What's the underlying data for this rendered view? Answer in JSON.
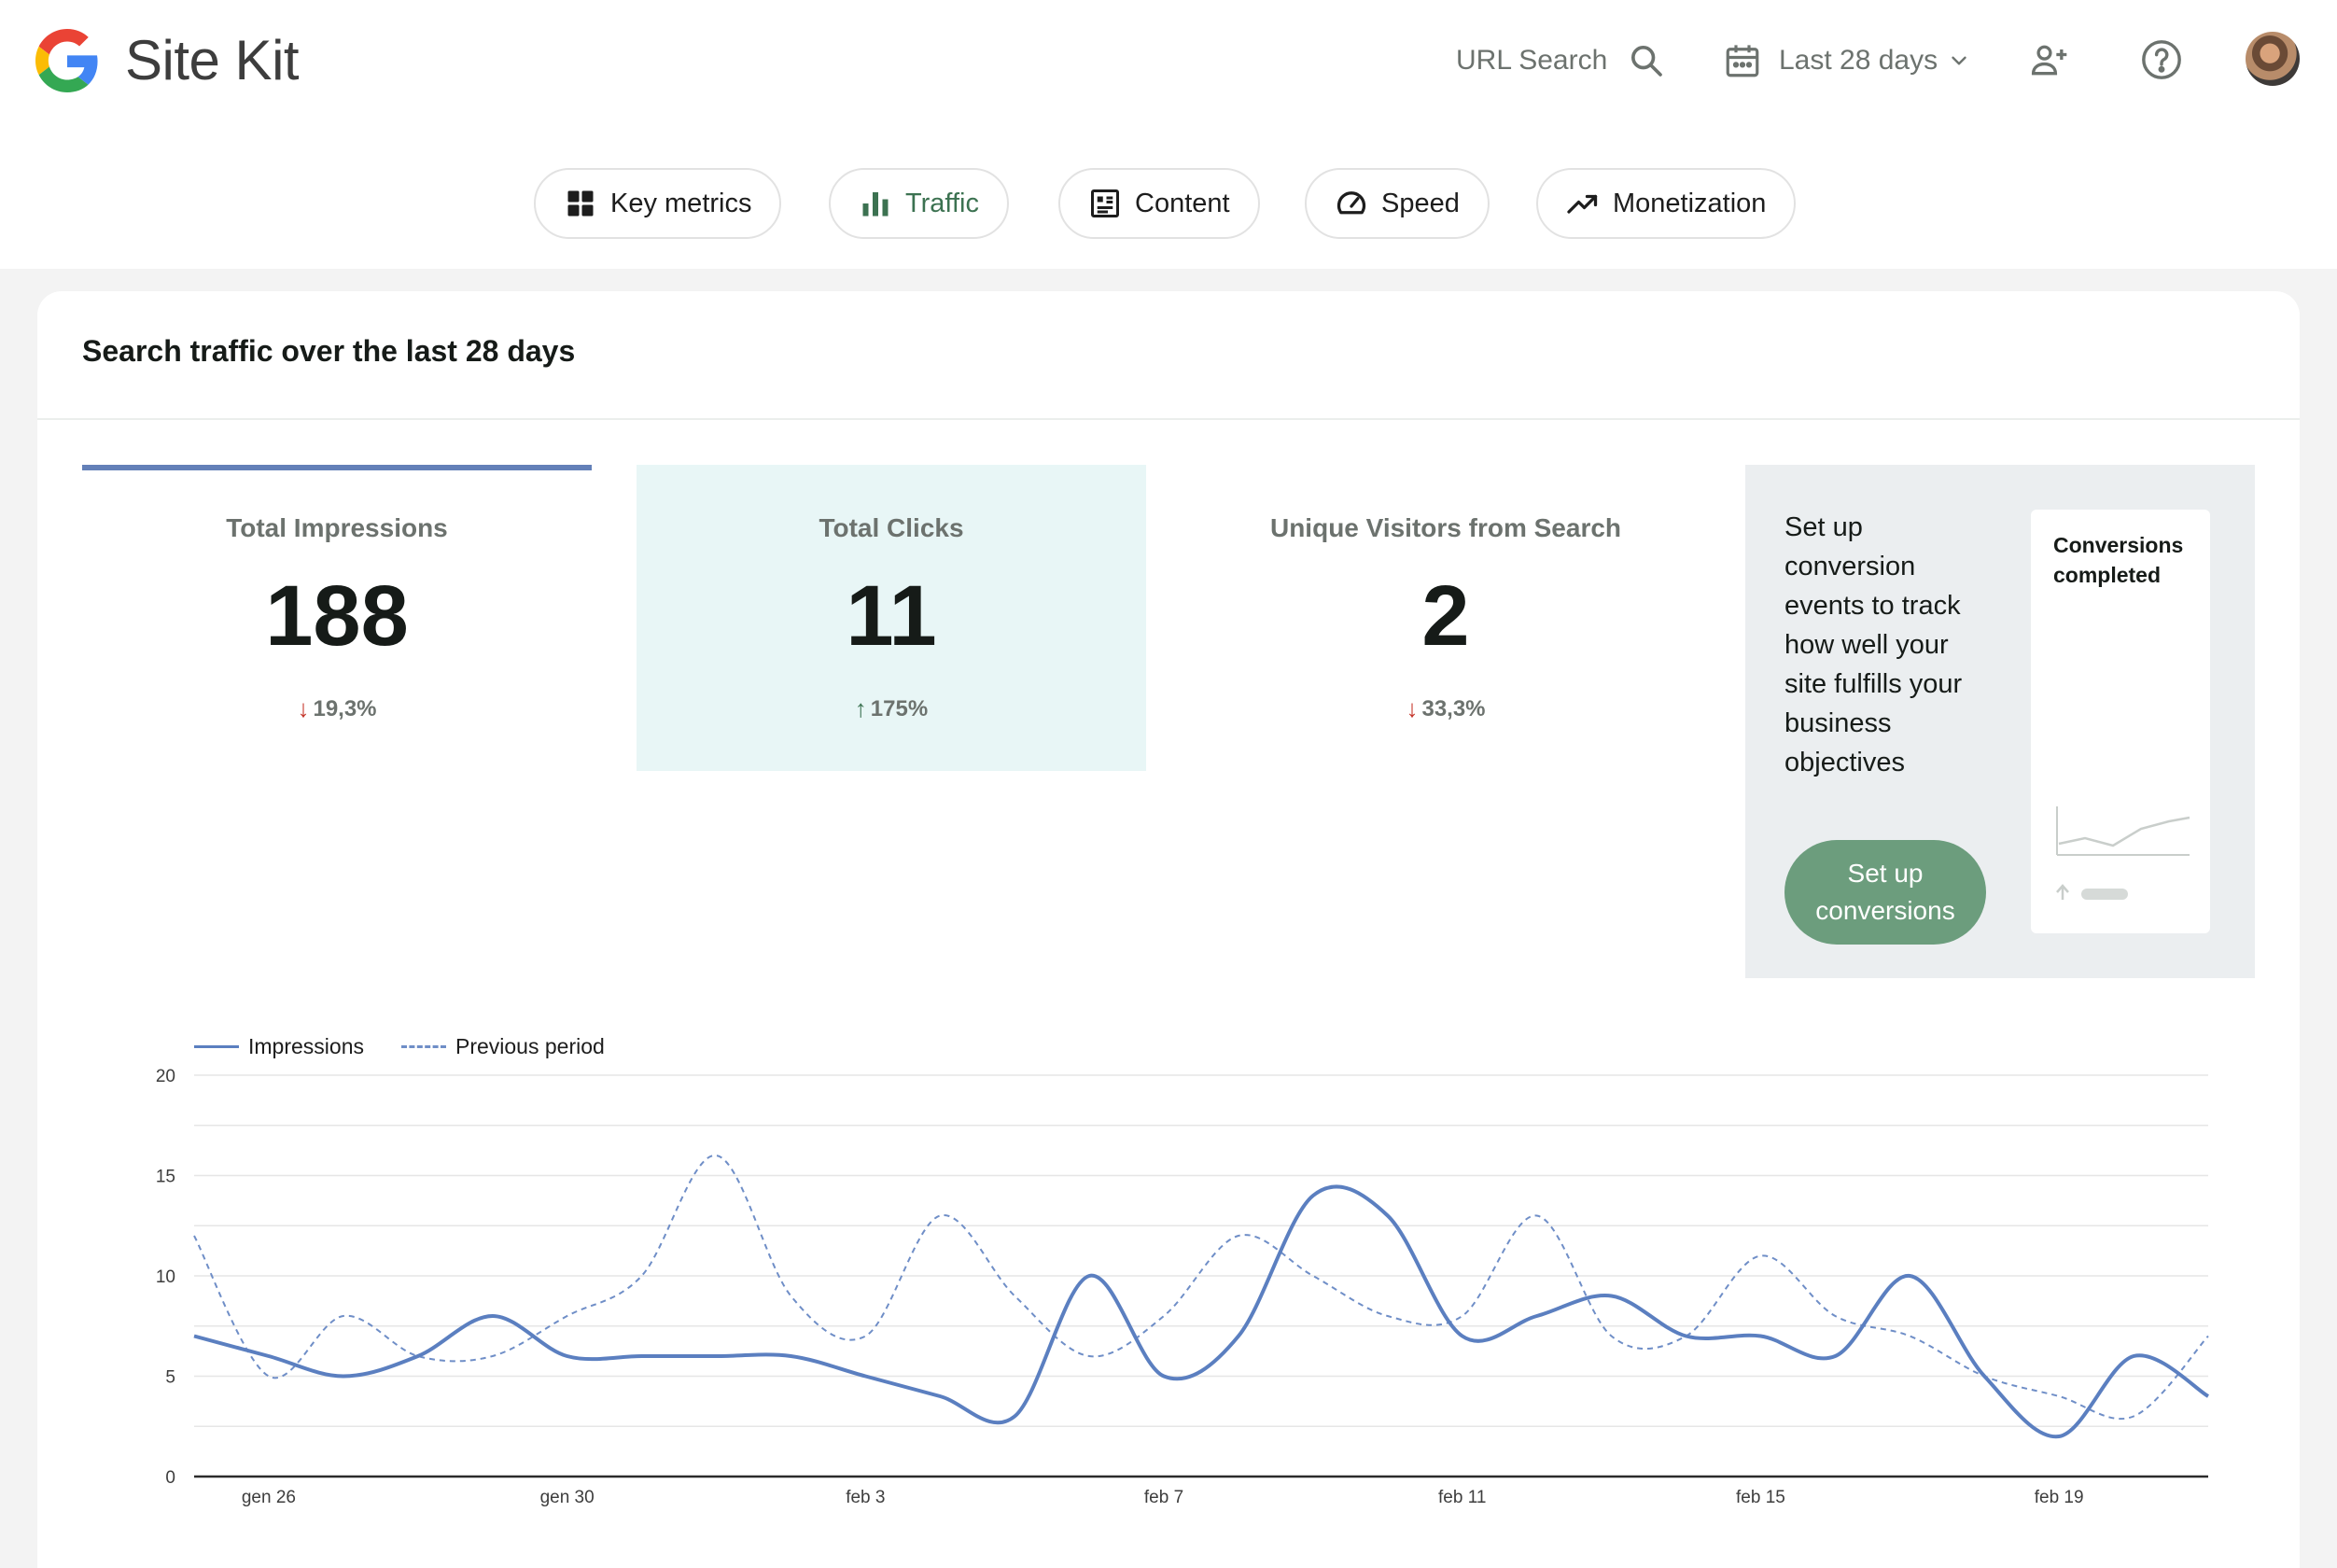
{
  "header": {
    "brand": "Site Kit",
    "url_search_label": "URL Search",
    "date_range_label": "Last 28 days"
  },
  "tabs": [
    {
      "label": "Key metrics",
      "icon": "grid-icon",
      "active": false
    },
    {
      "label": "Traffic",
      "icon": "bar-chart-icon",
      "active": true
    },
    {
      "label": "Content",
      "icon": "content-icon",
      "active": false
    },
    {
      "label": "Speed",
      "icon": "speedometer-icon",
      "active": false
    },
    {
      "label": "Monetization",
      "icon": "trending-up-icon",
      "active": false
    }
  ],
  "panel": {
    "title": "Search traffic over the last 28 days",
    "metrics": [
      {
        "label": "Total Impressions",
        "value": "188",
        "change": "19,3%",
        "direction": "down"
      },
      {
        "label": "Total Clicks",
        "value": "11",
        "change": "175%",
        "direction": "up"
      },
      {
        "label": "Unique Visitors from Search",
        "value": "2",
        "change": "33,3%",
        "direction": "down"
      }
    ],
    "conversions": {
      "text": "Set up conversion events to track how well your site fulfills your business objectives",
      "button_label": "Set up conversions",
      "mini_card_title": "Conversions completed"
    }
  },
  "colors": {
    "accent": "#6380b8",
    "impressions_line": "#5b7fc0",
    "active_tab": "#3c7251",
    "up": "#3c7251",
    "down": "#c5372c",
    "cta": "#6c9d7d"
  },
  "chart_data": {
    "type": "line",
    "title": "",
    "xlabel": "",
    "ylabel": "",
    "ylim": [
      0,
      20
    ],
    "yticks": [
      "0",
      "5",
      "10",
      "15",
      "20"
    ],
    "x_tick_labels": [
      "gen 26",
      "gen 30",
      "feb 3",
      "feb 7",
      "feb 11",
      "feb 15",
      "feb 19"
    ],
    "x": [
      "gen 25",
      "gen 26",
      "gen 27",
      "gen 28",
      "gen 29",
      "gen 30",
      "gen 31",
      "feb 1",
      "feb 2",
      "feb 3",
      "feb 4",
      "feb 5",
      "feb 6",
      "feb 7",
      "feb 8",
      "feb 9",
      "feb 10",
      "feb 11",
      "feb 12",
      "feb 13",
      "feb 14",
      "feb 15",
      "feb 16",
      "feb 17",
      "feb 18",
      "feb 19",
      "feb 20",
      "feb 21"
    ],
    "grid": true,
    "legend_position": "top-left",
    "series": [
      {
        "name": "Impressions",
        "style": "solid",
        "values": [
          7,
          6,
          5,
          6,
          8,
          6,
          6,
          6,
          6,
          5,
          4,
          3,
          10,
          5,
          7,
          14,
          13,
          7,
          8,
          9,
          7,
          7,
          6,
          10,
          5,
          2,
          6,
          4
        ]
      },
      {
        "name": "Previous period",
        "style": "dashed",
        "values": [
          12,
          5,
          8,
          6,
          6,
          8,
          10,
          16,
          9,
          7,
          13,
          9,
          6,
          8,
          12,
          10,
          8,
          8,
          13,
          7,
          7,
          11,
          8,
          7,
          5,
          4,
          3,
          7
        ]
      }
    ]
  }
}
